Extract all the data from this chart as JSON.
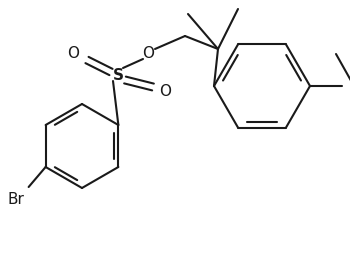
{
  "background": "#ffffff",
  "bond_color": "#1a1a1a",
  "line_width": 1.5,
  "figsize": [
    3.5,
    2.54
  ],
  "dpi": 100,
  "xlim": [
    0,
    350
  ],
  "ylim": [
    0,
    254
  ]
}
